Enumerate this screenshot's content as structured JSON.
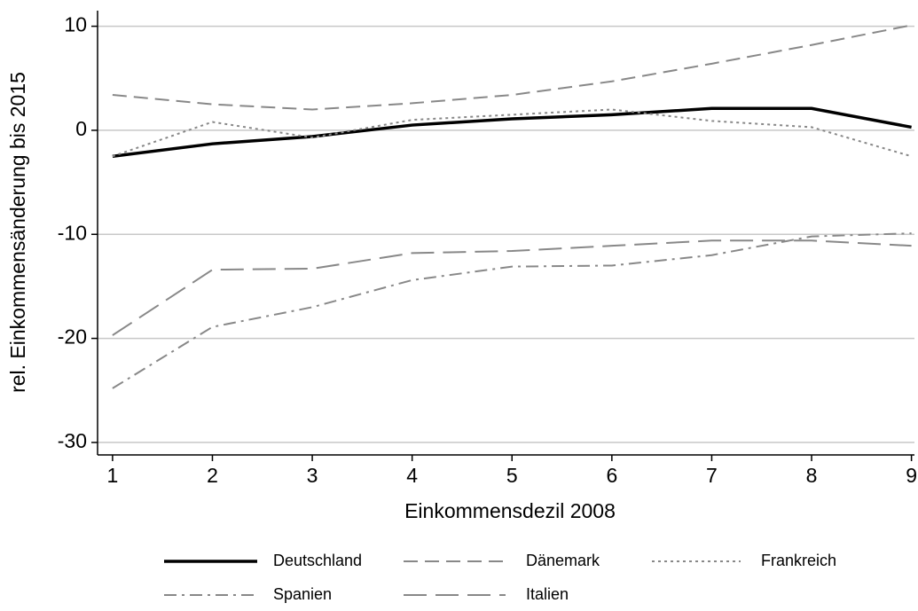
{
  "chart_data": {
    "type": "line",
    "x_label": "Einkommensdezil 2008",
    "y_label": "rel. Einkommensänderung bis 2015",
    "x": [
      1,
      2,
      3,
      4,
      5,
      6,
      7,
      8,
      9
    ],
    "series": [
      {
        "name": "Deutschland",
        "color": "#000000",
        "dash": "solid",
        "width": 3.5,
        "values": [
          -2.5,
          -1.3,
          -0.6,
          0.5,
          1.1,
          1.5,
          2.1,
          2.1,
          0.3
        ]
      },
      {
        "name": "Dänemark",
        "color": "#888888",
        "dash": "dashed",
        "width": 2,
        "values": [
          3.4,
          2.5,
          2.0,
          2.6,
          3.4,
          4.7,
          6.4,
          8.2,
          10.1
        ]
      },
      {
        "name": "Frankreich",
        "color": "#888888",
        "dash": "dotted",
        "width": 2,
        "values": [
          -2.5,
          0.8,
          -0.7,
          1.0,
          1.5,
          2.0,
          0.9,
          0.3,
          -2.5
        ]
      },
      {
        "name": "Spanien",
        "color": "#888888",
        "dash": "dashdot",
        "width": 2,
        "values": [
          -24.8,
          -18.9,
          -17.0,
          -14.4,
          -13.1,
          -13.0,
          -12.0,
          -10.2,
          -9.9
        ]
      },
      {
        "name": "Italien",
        "color": "#888888",
        "dash": "longdash",
        "width": 2,
        "values": [
          -19.7,
          -13.4,
          -13.3,
          -11.8,
          -11.6,
          -11.1,
          -10.6,
          -10.6,
          -11.1
        ]
      }
    ],
    "xlim": [
      0.85,
      9.03
    ],
    "xticks": [
      1,
      2,
      3,
      4,
      5,
      6,
      7,
      8,
      9
    ],
    "ylim": [
      -31.2,
      11.5
    ],
    "yticks": [
      -30,
      -20,
      -10,
      0,
      10
    ],
    "grid": true,
    "legend": "bottom"
  }
}
